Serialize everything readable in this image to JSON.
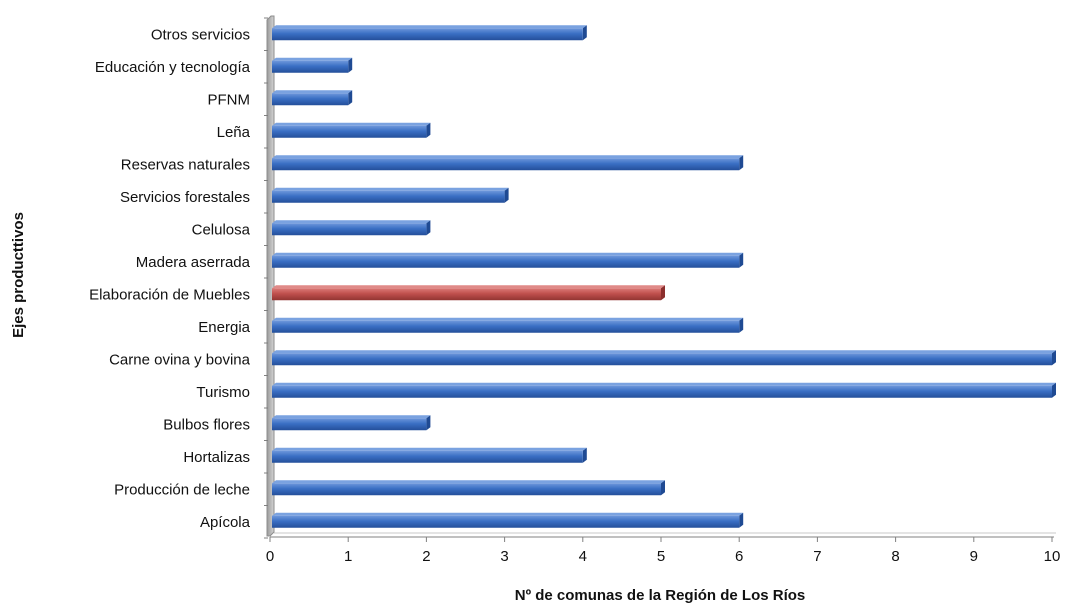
{
  "chart_data": {
    "type": "bar",
    "orientation": "horizontal",
    "title": "",
    "xlabel": "Nº de comunas de la Región de Los Ríos",
    "ylabel": "Ejes producttivos",
    "xlim": [
      0,
      10
    ],
    "xticks": [
      "0",
      "1",
      "2",
      "3",
      "4",
      "5",
      "6",
      "7",
      "8",
      "9",
      "10"
    ],
    "grid": false,
    "legend": "none",
    "categories": [
      "Otros servicios",
      "Educación y tecnología",
      "PFNM",
      "Leña",
      "Reservas naturales",
      "Servicios forestales",
      "Celulosa",
      "Madera aserrada",
      "Elaboración de Muebles",
      "Energia",
      "Carne ovina y bovina",
      "Turismo",
      "Bulbos flores",
      "Hortalizas",
      "Producción de leche",
      "Apícola"
    ],
    "values": [
      4,
      1,
      1,
      2,
      6,
      3,
      2,
      6,
      5,
      6,
      10,
      10,
      2,
      4,
      5,
      6
    ],
    "highlight_category": "Elaboración de Muebles",
    "colors": {
      "bar": "#3a6fc4",
      "bar_dark": "#1f4a93",
      "bar_light": "#7aa2e0",
      "highlight": "#c0504d",
      "highlight_dark": "#8c2f2d",
      "highlight_light": "#e08a88",
      "axis_wall": "#bfbfbf",
      "axis_wall_dark": "#8c8c8c"
    }
  }
}
